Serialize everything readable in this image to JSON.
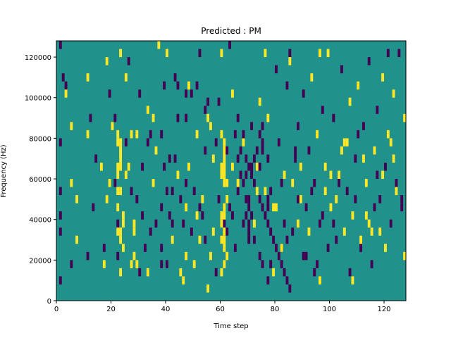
{
  "chart_data": {
    "type": "heatmap",
    "title": "Predicted : PM",
    "xlabel": "Time step",
    "ylabel": "Frequency (Hz)",
    "xlim": [
      0,
      128
    ],
    "ylim": [
      0,
      128000
    ],
    "xticks": [
      0,
      20,
      40,
      60,
      80,
      100,
      120
    ],
    "yticks": [
      0,
      20000,
      40000,
      60000,
      80000,
      100000,
      120000
    ],
    "xtick_labels": [
      "0",
      "20",
      "40",
      "60",
      "80",
      "100",
      "120"
    ],
    "ytick_labels": [
      "0",
      "20000",
      "40000",
      "60000",
      "80000",
      "100000",
      "120000"
    ],
    "grid": false,
    "legend": "none",
    "n_time_steps": 128,
    "n_freq_bins": 32,
    "background_value": 1,
    "colormap": {
      "0": "#440154",
      "1": "#21918c",
      "2": "#fde725"
    },
    "cells": [
      [
        1,
        31,
        0
      ],
      [
        2,
        27,
        0
      ],
      [
        3,
        26,
        0
      ],
      [
        3,
        25,
        2
      ],
      [
        5,
        14,
        2
      ],
      [
        5,
        4,
        0
      ],
      [
        1,
        19,
        0
      ],
      [
        1,
        13,
        0
      ],
      [
        1,
        10,
        0
      ],
      [
        1,
        8,
        0
      ],
      [
        1,
        2,
        0
      ],
      [
        5,
        21,
        2
      ],
      [
        7,
        12,
        2
      ],
      [
        7,
        7,
        2
      ],
      [
        11,
        27,
        2
      ],
      [
        11,
        20,
        2
      ],
      [
        11,
        5,
        0
      ],
      [
        12,
        22,
        0
      ],
      [
        13,
        11,
        0
      ],
      [
        14,
        17,
        0
      ],
      [
        16,
        16,
        2
      ],
      [
        17,
        6,
        0
      ],
      [
        17,
        4,
        2
      ],
      [
        18,
        12,
        2
      ],
      [
        19,
        14,
        2
      ],
      [
        19,
        25,
        0
      ],
      [
        20,
        21,
        2
      ],
      [
        21,
        22,
        0
      ],
      [
        21,
        14,
        0
      ],
      [
        22,
        20,
        2
      ],
      [
        22,
        13,
        2
      ],
      [
        22,
        9,
        0
      ],
      [
        22,
        5,
        0
      ],
      [
        23,
        3,
        2
      ],
      [
        23,
        16,
        2
      ],
      [
        24,
        10,
        2
      ],
      [
        24,
        6,
        2
      ],
      [
        25,
        19,
        0
      ],
      [
        25,
        27,
        2
      ],
      [
        26,
        29,
        0
      ],
      [
        27,
        13,
        0
      ],
      [
        27,
        4,
        2
      ],
      [
        28,
        5,
        2
      ],
      [
        28,
        8,
        2
      ],
      [
        29,
        12,
        0
      ],
      [
        29,
        20,
        2
      ],
      [
        30,
        25,
        0
      ],
      [
        31,
        16,
        0
      ],
      [
        31,
        10,
        0
      ],
      [
        32,
        6,
        0
      ],
      [
        33,
        3,
        2
      ],
      [
        34,
        8,
        0
      ],
      [
        35,
        14,
        2
      ],
      [
        36,
        9,
        0
      ],
      [
        36,
        18,
        2
      ],
      [
        37,
        31,
        2
      ],
      [
        38,
        20,
        0
      ],
      [
        38,
        11,
        0
      ],
      [
        38,
        6,
        0
      ],
      [
        39,
        26,
        0
      ],
      [
        40,
        4,
        0
      ],
      [
        41,
        17,
        0
      ],
      [
        42,
        7,
        2
      ],
      [
        42,
        13,
        0
      ],
      [
        43,
        27,
        0
      ],
      [
        44,
        22,
        0
      ],
      [
        45,
        12,
        0
      ],
      [
        46,
        9,
        0
      ],
      [
        47,
        11,
        2
      ],
      [
        47,
        5,
        2
      ],
      [
        48,
        26,
        2
      ],
      [
        49,
        25,
        0
      ],
      [
        50,
        13,
        0
      ],
      [
        51,
        20,
        2
      ],
      [
        52,
        7,
        2
      ],
      [
        53,
        10,
        0
      ],
      [
        54,
        18,
        0
      ],
      [
        55,
        22,
        2
      ],
      [
        56,
        21,
        2
      ],
      [
        57,
        17,
        2
      ],
      [
        58,
        19,
        0
      ],
      [
        59,
        24,
        0
      ],
      [
        60,
        20,
        2
      ],
      [
        61,
        9,
        0
      ],
      [
        62,
        14,
        2
      ],
      [
        63,
        31,
        0
      ],
      [
        64,
        25,
        2
      ],
      [
        65,
        6,
        0
      ],
      [
        66,
        17,
        0
      ],
      [
        67,
        15,
        0
      ],
      [
        68,
        19,
        2
      ],
      [
        69,
        12,
        0
      ],
      [
        70,
        7,
        0
      ],
      [
        71,
        21,
        0
      ],
      [
        72,
        9,
        2
      ],
      [
        73,
        16,
        0
      ],
      [
        74,
        24,
        2
      ],
      [
        75,
        18,
        0
      ],
      [
        76,
        13,
        2
      ],
      [
        77,
        22,
        2
      ],
      [
        78,
        4,
        0
      ],
      [
        79,
        11,
        2
      ],
      [
        80,
        28,
        0
      ],
      [
        81,
        19,
        0
      ],
      [
        82,
        6,
        0
      ],
      [
        83,
        15,
        2
      ],
      [
        84,
        26,
        0
      ],
      [
        85,
        29,
        2
      ],
      [
        86,
        8,
        0
      ],
      [
        87,
        17,
        0
      ],
      [
        88,
        21,
        0
      ],
      [
        89,
        12,
        2
      ],
      [
        90,
        25,
        0
      ],
      [
        91,
        5,
        0
      ],
      [
        92,
        18,
        0
      ],
      [
        93,
        27,
        2
      ],
      [
        94,
        14,
        0
      ],
      [
        95,
        20,
        2
      ],
      [
        96,
        9,
        0
      ],
      [
        97,
        23,
        0
      ],
      [
        98,
        16,
        2
      ],
      [
        99,
        30,
        2
      ],
      [
        100,
        11,
        2
      ],
      [
        101,
        22,
        0
      ],
      [
        102,
        7,
        0
      ],
      [
        103,
        15,
        2
      ],
      [
        104,
        28,
        0
      ],
      [
        105,
        19,
        2
      ],
      [
        106,
        13,
        0
      ],
      [
        107,
        24,
        2
      ],
      [
        108,
        10,
        2
      ],
      [
        109,
        17,
        0
      ],
      [
        110,
        26,
        2
      ],
      [
        111,
        6,
        0
      ],
      [
        112,
        21,
        0
      ],
      [
        113,
        14,
        2
      ],
      [
        114,
        29,
        0
      ],
      [
        115,
        8,
        2
      ],
      [
        116,
        18,
        2
      ],
      [
        117,
        23,
        0
      ],
      [
        118,
        12,
        0
      ],
      [
        119,
        27,
        2
      ],
      [
        120,
        16,
        0
      ],
      [
        121,
        20,
        2
      ],
      [
        122,
        9,
        0
      ],
      [
        123,
        25,
        2
      ],
      [
        124,
        13,
        2
      ],
      [
        125,
        30,
        0
      ],
      [
        126,
        11,
        0
      ],
      [
        127,
        22,
        2
      ],
      [
        40,
        30,
        2
      ],
      [
        52,
        30,
        0
      ],
      [
        60,
        30,
        2
      ],
      [
        76,
        30,
        2
      ],
      [
        85,
        30,
        0
      ],
      [
        96,
        30,
        2
      ],
      [
        121,
        30,
        0
      ],
      [
        44,
        26,
        0
      ],
      [
        47,
        25,
        0
      ],
      [
        55,
        24,
        0
      ],
      [
        51,
        26,
        0
      ],
      [
        54,
        23,
        0
      ],
      [
        47,
        22,
        0
      ],
      [
        33,
        23,
        2
      ],
      [
        23,
        30,
        2
      ],
      [
        18,
        29,
        2
      ],
      [
        61,
        19,
        2
      ],
      [
        61,
        18,
        2
      ],
      [
        62,
        18,
        0
      ],
      [
        61,
        17,
        2
      ],
      [
        60,
        16,
        2
      ],
      [
        61,
        16,
        2
      ],
      [
        61,
        15,
        2
      ],
      [
        60,
        15,
        2
      ],
      [
        61,
        14,
        2
      ],
      [
        62,
        12,
        2
      ],
      [
        61,
        11,
        2
      ],
      [
        60,
        10,
        2
      ],
      [
        61,
        10,
        2
      ],
      [
        60,
        9,
        2
      ],
      [
        61,
        8,
        2
      ],
      [
        62,
        8,
        0
      ],
      [
        60,
        7,
        2
      ],
      [
        61,
        7,
        2
      ],
      [
        61,
        6,
        2
      ],
      [
        62,
        5,
        2
      ],
      [
        61,
        4,
        2
      ],
      [
        60,
        3,
        2
      ],
      [
        63,
        11,
        0
      ],
      [
        64,
        10,
        0
      ],
      [
        70,
        12,
        0
      ],
      [
        70,
        11,
        0
      ],
      [
        71,
        10,
        0
      ],
      [
        69,
        10,
        0
      ],
      [
        70,
        9,
        0
      ],
      [
        68,
        9,
        0
      ],
      [
        72,
        7,
        0
      ],
      [
        70,
        8,
        0
      ],
      [
        66,
        13,
        0
      ],
      [
        66,
        14,
        2
      ],
      [
        68,
        14,
        0
      ],
      [
        69,
        15,
        0
      ],
      [
        71,
        16,
        0
      ],
      [
        73,
        16,
        2
      ],
      [
        74,
        16,
        0
      ],
      [
        72,
        17,
        0
      ],
      [
        73,
        18,
        0
      ],
      [
        75,
        19,
        0
      ],
      [
        74,
        20,
        0
      ],
      [
        75,
        21,
        0
      ],
      [
        77,
        17,
        0
      ],
      [
        78,
        13,
        0
      ],
      [
        79,
        3,
        2
      ],
      [
        77,
        12,
        0
      ],
      [
        77,
        11,
        0
      ],
      [
        74,
        5,
        0
      ],
      [
        75,
        4,
        0
      ],
      [
        77,
        2,
        0
      ],
      [
        80,
        11,
        2
      ],
      [
        83,
        9,
        0
      ],
      [
        82,
        6,
        2
      ],
      [
        82,
        14,
        0
      ],
      [
        84,
        7,
        0
      ],
      [
        88,
        9,
        2
      ],
      [
        88,
        12,
        0
      ],
      [
        92,
        8,
        2
      ],
      [
        94,
        3,
        0
      ],
      [
        96,
        2,
        2
      ],
      [
        98,
        13,
        2
      ],
      [
        100,
        15,
        2
      ],
      [
        102,
        12,
        2
      ],
      [
        104,
        18,
        2
      ],
      [
        106,
        19,
        2
      ],
      [
        108,
        2,
        2
      ],
      [
        110,
        20,
        0
      ],
      [
        112,
        17,
        2
      ],
      [
        114,
        9,
        2
      ],
      [
        116,
        11,
        0
      ],
      [
        119,
        15,
        2
      ],
      [
        122,
        19,
        2
      ],
      [
        124,
        14,
        0
      ],
      [
        127,
        5,
        2
      ],
      [
        23,
        7,
        2
      ],
      [
        23,
        8,
        2
      ],
      [
        22,
        11,
        2
      ],
      [
        23,
        13,
        2
      ],
      [
        22,
        15,
        2
      ],
      [
        23,
        18,
        2
      ],
      [
        22,
        16,
        2
      ],
      [
        23,
        17,
        2
      ],
      [
        22,
        19,
        2
      ],
      [
        23,
        19,
        2
      ],
      [
        22,
        8,
        2
      ],
      [
        24,
        9,
        2
      ],
      [
        25,
        15,
        2
      ],
      [
        26,
        16,
        2
      ],
      [
        27,
        20,
        2
      ],
      [
        28,
        9,
        2
      ],
      [
        29,
        4,
        2
      ],
      [
        30,
        3,
        0
      ],
      [
        33,
        19,
        0
      ],
      [
        34,
        20,
        0
      ],
      [
        35,
        22,
        2
      ],
      [
        38,
        4,
        0
      ],
      [
        39,
        16,
        0
      ],
      [
        40,
        13,
        0
      ],
      [
        41,
        10,
        0
      ],
      [
        42,
        9,
        0
      ],
      [
        43,
        17,
        0
      ],
      [
        44,
        15,
        2
      ],
      [
        45,
        3,
        2
      ],
      [
        46,
        2,
        2
      ],
      [
        47,
        14,
        0
      ],
      [
        48,
        16,
        2
      ],
      [
        49,
        8,
        0
      ],
      [
        50,
        4,
        2
      ],
      [
        51,
        10,
        2
      ],
      [
        52,
        11,
        0
      ],
      [
        53,
        12,
        2
      ],
      [
        54,
        7,
        0
      ],
      [
        55,
        1,
        2
      ],
      [
        56,
        5,
        2
      ],
      [
        57,
        8,
        2
      ],
      [
        58,
        3,
        0
      ],
      [
        59,
        12,
        0
      ],
      [
        64,
        16,
        2
      ],
      [
        65,
        20,
        0
      ],
      [
        66,
        22,
        0
      ],
      [
        67,
        18,
        0
      ],
      [
        68,
        20,
        0
      ],
      [
        69,
        17,
        0
      ],
      [
        70,
        16,
        0
      ],
      [
        71,
        15,
        0
      ],
      [
        72,
        14,
        0
      ],
      [
        73,
        13,
        2
      ],
      [
        74,
        12,
        0
      ],
      [
        75,
        11,
        0
      ],
      [
        76,
        10,
        0
      ],
      [
        77,
        9,
        0
      ],
      [
        78,
        8,
        0
      ],
      [
        79,
        7,
        0
      ],
      [
        80,
        6,
        0
      ],
      [
        81,
        5,
        0
      ],
      [
        82,
        4,
        0
      ],
      [
        83,
        3,
        0
      ],
      [
        84,
        2,
        0
      ],
      [
        85,
        1,
        0
      ],
      [
        86,
        14,
        2
      ],
      [
        87,
        18,
        0
      ],
      [
        89,
        16,
        2
      ],
      [
        90,
        5,
        0
      ],
      [
        91,
        11,
        0
      ],
      [
        93,
        13,
        0
      ],
      [
        95,
        4,
        0
      ],
      [
        97,
        10,
        0
      ],
      [
        99,
        6,
        0
      ],
      [
        101,
        9,
        0
      ],
      [
        103,
        14,
        0
      ],
      [
        105,
        8,
        2
      ],
      [
        107,
        3,
        0
      ],
      [
        109,
        12,
        0
      ],
      [
        111,
        7,
        2
      ],
      [
        113,
        10,
        2
      ],
      [
        115,
        4,
        0
      ],
      [
        117,
        15,
        0
      ],
      [
        118,
        8,
        2
      ],
      [
        120,
        6,
        2
      ],
      [
        123,
        17,
        2
      ],
      [
        126,
        12,
        0
      ]
    ]
  }
}
